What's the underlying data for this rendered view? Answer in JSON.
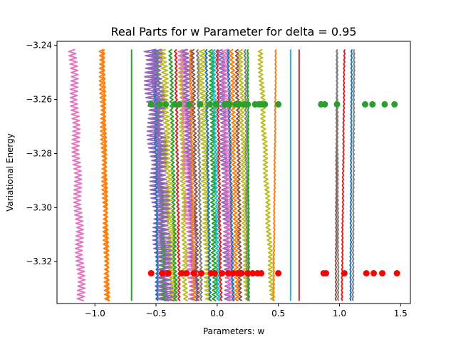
{
  "chart_data": {
    "type": "line",
    "title": "Real Parts for w Parameter for delta = 0.95",
    "xlabel": "Parameters: w",
    "ylabel": "Variational Energy",
    "xlim": [
      -1.31,
      1.58
    ],
    "ylim": [
      -3.3355,
      -3.2385
    ],
    "xticks": [
      -1.0,
      -0.5,
      0.0,
      0.5,
      1.0,
      1.5
    ],
    "xtick_labels": [
      "−1.0",
      "−0.5",
      "0.0",
      "0.5",
      "1.0",
      "1.5"
    ],
    "yticks": [
      -3.24,
      -3.26,
      -3.28,
      -3.3,
      -3.32
    ],
    "ytick_labels": [
      "−3.24",
      "−3.26",
      "−3.28",
      "−3.30",
      "−3.32"
    ],
    "grid": false,
    "legend": "none",
    "energy_range": [
      -3.3345,
      -3.2415
    ],
    "colors": [
      "#1f77b4",
      "#ff7f0e",
      "#2ca02c",
      "#d62728",
      "#9467bd",
      "#8c564b",
      "#e377c2",
      "#7f7f7f",
      "#bcbd22",
      "#17becf"
    ],
    "traces": [
      {
        "color": "#e377c2",
        "w_top": -1.18,
        "w_bottom": -1.11,
        "jitter": 0.035
      },
      {
        "color": "#ff7f0e",
        "w_top": -0.95,
        "w_bottom": -0.9,
        "jitter": 0.02
      },
      {
        "color": "#ff7f0e",
        "w_top": -0.93,
        "w_bottom": -0.89,
        "jitter": 0.01
      },
      {
        "color": "#2ca02c",
        "w_top": -0.7,
        "w_bottom": -0.7,
        "jitter": 0.0
      },
      {
        "color": "#9467bd",
        "w_top": -0.55,
        "w_bottom": -0.44,
        "jitter": 0.06
      },
      {
        "color": "#2ca02c",
        "w_top": -0.48,
        "w_bottom": -0.44,
        "jitter": 0.02
      },
      {
        "color": "#bcbd22",
        "w_top": -0.44,
        "w_bottom": -0.36,
        "jitter": 0.03
      },
      {
        "color": "#1f77b4",
        "w_top": -0.51,
        "w_bottom": -0.49,
        "jitter": 0.01
      },
      {
        "color": "#9467bd",
        "w_top": -0.5,
        "w_bottom": -0.4,
        "jitter": 0.05
      },
      {
        "color": "#2ca02c",
        "w_top": -0.38,
        "w_bottom": -0.34,
        "jitter": 0.015
      },
      {
        "color": "#d62728",
        "w_top": -0.34,
        "w_bottom": -0.31,
        "jitter": 0.01
      },
      {
        "color": "#bcbd22",
        "w_top": -0.3,
        "w_bottom": -0.26,
        "jitter": 0.02
      },
      {
        "color": "#e377c2",
        "w_top": -0.28,
        "w_bottom": -0.2,
        "jitter": 0.04
      },
      {
        "color": "#9467bd",
        "w_top": -0.26,
        "w_bottom": -0.18,
        "jitter": 0.03
      },
      {
        "color": "#ff7f0e",
        "w_top": -0.22,
        "w_bottom": -0.19,
        "jitter": 0.01
      },
      {
        "color": "#8c564b",
        "w_top": -0.2,
        "w_bottom": -0.16,
        "jitter": 0.015
      },
      {
        "color": "#7f7f7f",
        "w_top": -0.16,
        "w_bottom": -0.13,
        "jitter": 0.01
      },
      {
        "color": "#bcbd22",
        "w_top": -0.13,
        "w_bottom": -0.07,
        "jitter": 0.03
      },
      {
        "color": "#1f77b4",
        "w_top": -0.09,
        "w_bottom": -0.06,
        "jitter": 0.01
      },
      {
        "color": "#2ca02c",
        "w_top": -0.05,
        "w_bottom": -0.02,
        "jitter": 0.02
      },
      {
        "color": "#17becf",
        "w_top": -0.03,
        "w_bottom": 0.01,
        "jitter": 0.015
      },
      {
        "color": "#d62728",
        "w_top": 0.0,
        "w_bottom": 0.03,
        "jitter": 0.01
      },
      {
        "color": "#9467bd",
        "w_top": 0.03,
        "w_bottom": 0.09,
        "jitter": 0.03
      },
      {
        "color": "#e377c2",
        "w_top": 0.06,
        "w_bottom": 0.11,
        "jitter": 0.03
      },
      {
        "color": "#1f77b4",
        "w_top": 0.09,
        "w_bottom": 0.13,
        "jitter": 0.01
      },
      {
        "color": "#ff7f0e",
        "w_top": 0.12,
        "w_bottom": 0.16,
        "jitter": 0.02
      },
      {
        "color": "#8c564b",
        "w_top": 0.16,
        "w_bottom": 0.19,
        "jitter": 0.015
      },
      {
        "color": "#bcbd22",
        "w_top": 0.19,
        "w_bottom": 0.24,
        "jitter": 0.02
      },
      {
        "color": "#7f7f7f",
        "w_top": 0.23,
        "w_bottom": 0.25,
        "jitter": 0.01
      },
      {
        "color": "#2ca02c",
        "w_top": 0.25,
        "w_bottom": 0.26,
        "jitter": 0.005
      },
      {
        "color": "#bcbd22",
        "w_top": 0.35,
        "w_bottom": 0.45,
        "jitter": 0.02
      },
      {
        "color": "#ff7f0e",
        "w_top": 0.48,
        "w_bottom": 0.46,
        "jitter": 0.005
      },
      {
        "color": "#17becf",
        "w_top": 0.6,
        "w_bottom": 0.6,
        "jitter": 0.0
      },
      {
        "color": "#d62728",
        "w_top": 0.67,
        "w_bottom": 0.67,
        "jitter": 0.0
      },
      {
        "color": "#8c564b",
        "w_top": 0.98,
        "w_bottom": 0.97,
        "jitter": 0.005
      },
      {
        "color": "#7f7f7f",
        "w_top": 0.98,
        "w_bottom": 0.99,
        "jitter": 0.005
      },
      {
        "color": "#d62728",
        "w_top": 1.04,
        "w_bottom": 1.02,
        "jitter": 0.005
      },
      {
        "color": "#1f77b4",
        "w_top": 1.1,
        "w_bottom": 1.09,
        "jitter": 0.005
      },
      {
        "color": "#7f7f7f",
        "w_top": 1.12,
        "w_bottom": 1.11,
        "jitter": 0.005
      }
    ],
    "green_points": {
      "energy": -3.2618,
      "color": "#2ca02c",
      "w": [
        -0.54,
        -0.47,
        -0.42,
        -0.35,
        -0.31,
        -0.23,
        -0.14,
        -0.06,
        -0.01,
        0.06,
        0.08,
        0.1,
        0.15,
        0.18,
        0.22,
        0.25,
        0.31,
        0.34,
        0.36,
        0.39,
        0.5,
        0.85,
        0.88,
        0.98,
        1.21,
        1.27,
        1.37,
        1.45
      ]
    },
    "red_points": {
      "energy": -3.3243,
      "color": "#ff0000",
      "w": [
        -0.54,
        -0.45,
        -0.4,
        -0.29,
        -0.25,
        -0.19,
        -0.13,
        -0.05,
        -0.02,
        0.04,
        0.09,
        0.13,
        0.17,
        0.2,
        0.25,
        0.29,
        0.33,
        0.36,
        0.5,
        0.87,
        0.89,
        1.04,
        1.22,
        1.28,
        1.35,
        1.47
      ]
    }
  }
}
